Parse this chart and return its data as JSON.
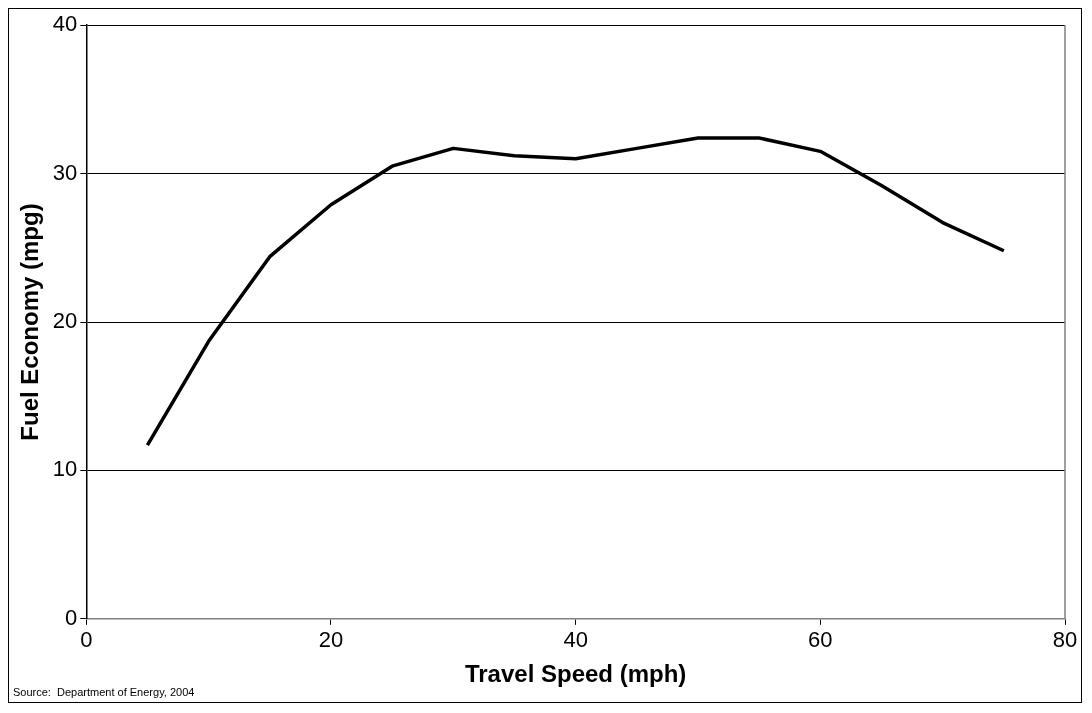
{
  "chart_data": {
    "type": "line",
    "xlabel": "Travel Speed (mph)",
    "ylabel": "Fuel Economy (mpg)",
    "x": [
      5,
      10,
      15,
      20,
      25,
      30,
      35,
      40,
      45,
      50,
      55,
      60,
      65,
      70,
      75
    ],
    "series": [
      {
        "color": "#000000",
        "values": [
          11.7,
          18.7,
          24.4,
          27.9,
          30.5,
          31.7,
          31.2,
          31.0,
          31.7,
          32.4,
          32.4,
          31.5,
          29.2,
          26.7,
          24.8
        ]
      }
    ],
    "xlim": [
      0,
      80
    ],
    "xticks": [
      0,
      20,
      40,
      60,
      80
    ],
    "ylim": [
      0,
      40
    ],
    "yticks": [
      0,
      10,
      20,
      30,
      40
    ],
    "grid": "y",
    "legend": false,
    "marker": "none",
    "line_style": "solid",
    "annotations": [
      "Source:  Department of Energy, 2004"
    ]
  }
}
